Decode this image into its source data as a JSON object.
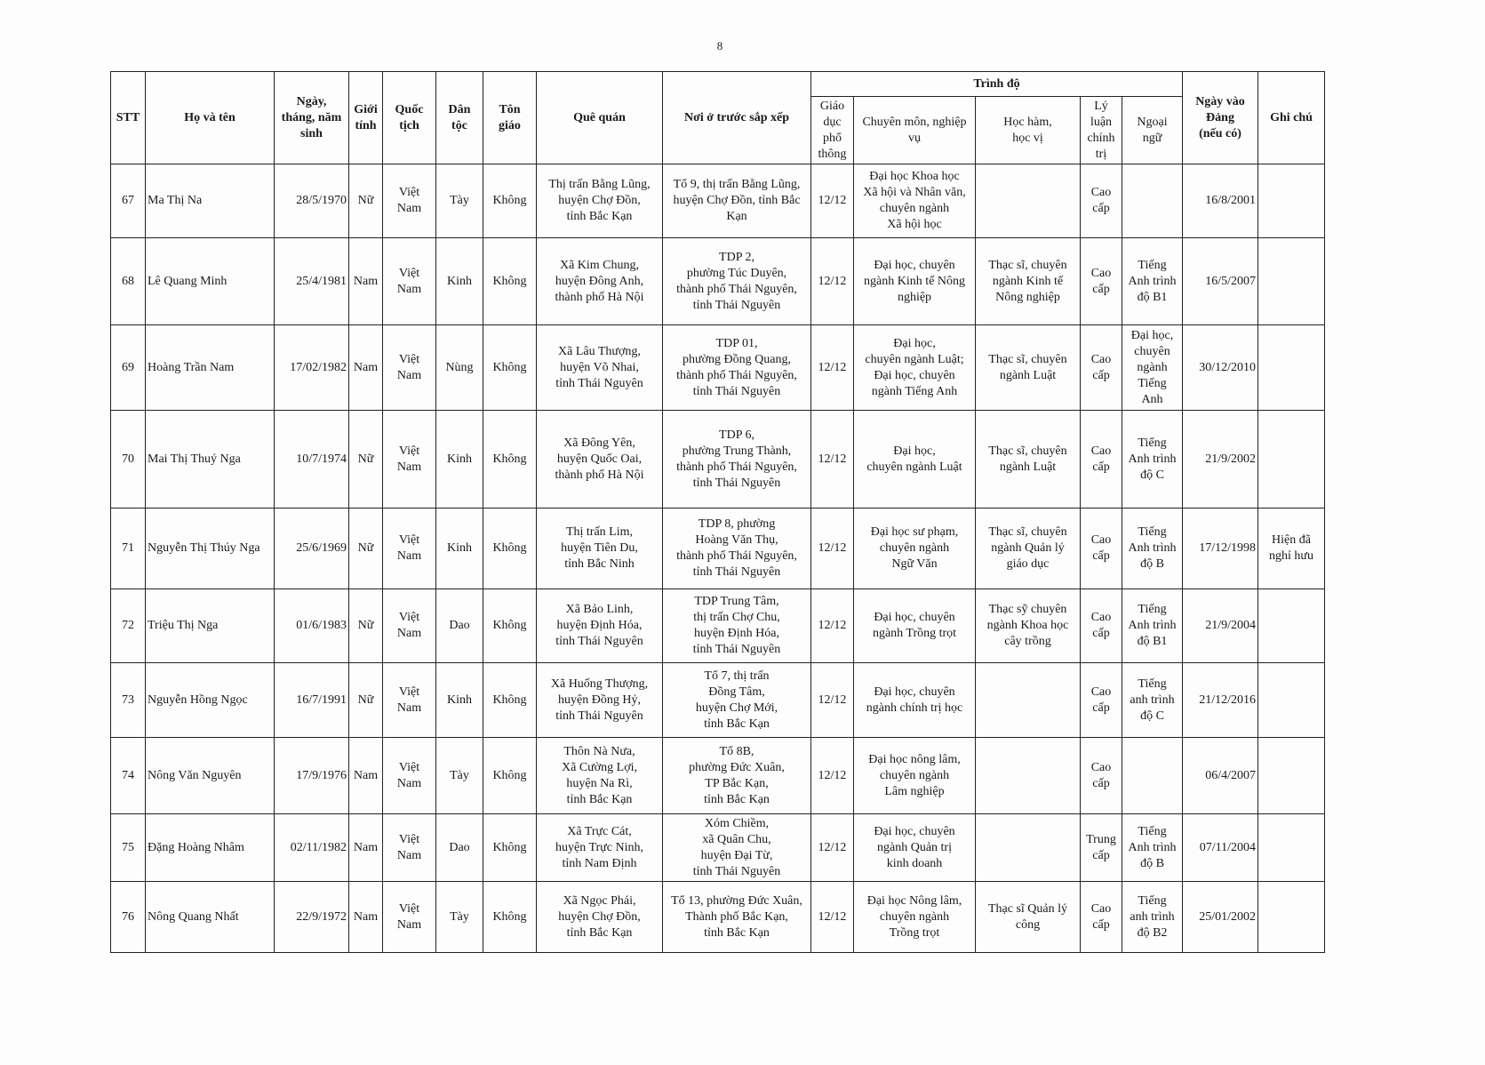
{
  "page_number": "8",
  "header": {
    "stt": "STT",
    "name": "Họ và tên",
    "dob": "Ngày,\ntháng, năm\nsinh",
    "gender": "Giới\ntính",
    "nationality": "Quốc\ntịch",
    "ethnicity": "Dân\ntộc",
    "religion": "Tôn\ngiáo",
    "hometown": "Quê quán",
    "residence": "Nơi ở trước sắp xếp",
    "qualification": "Trình độ",
    "general_edu": "Giáo\ndục\nphổ\nthông",
    "specialty": "Chuyên môn, nghiệp\nvụ",
    "degree": "Học hàm,\nhọc vị",
    "political": "Lý\nluận\nchính\ntrị",
    "language": "Ngoại\nngữ",
    "party_date": "Ngày vào\nĐảng\n(nếu có)",
    "note": "Ghi chú"
  },
  "rows": [
    {
      "stt": "67",
      "name": "Ma Thị Na",
      "dob": "28/5/1970",
      "gender": "Nữ",
      "nationality": "Việt\nNam",
      "ethnicity": "Tày",
      "religion": "Không",
      "hometown": "Thị trấn Bằng Lũng,\nhuyện Chợ Đồn,\ntỉnh Bắc Kạn",
      "residence": "Tổ 9, thị trấn Bằng Lũng,\nhuyện Chợ Đồn, tỉnh Bắc\nKạn",
      "general_edu": "12/12",
      "specialty": "Đại học Khoa học\nXã hội và Nhân văn,\nchuyên ngành\nXã hội học",
      "degree": "",
      "political": "Cao\ncấp",
      "language": "",
      "party_date": "16/8/2001",
      "note": ""
    },
    {
      "stt": "68",
      "name": "Lê Quang Minh",
      "dob": "25/4/1981",
      "gender": "Nam",
      "nationality": "Việt\nNam",
      "ethnicity": "Kinh",
      "religion": "Không",
      "hometown": "Xã Kim Chung,\nhuyện Đông Anh,\nthành phố Hà Nội",
      "residence": "TDP 2,\nphường Túc Duyên,\nthành phố Thái Nguyên,\ntỉnh Thái Nguyên",
      "general_edu": "12/12",
      "specialty": "Đại học, chuyên\nngành Kinh tế Nông\nnghiệp",
      "degree": "Thạc sĩ, chuyên\nngành Kinh tế\nNông nghiệp",
      "political": "Cao\ncấp",
      "language": "Tiếng\nAnh trình\nđộ B1",
      "party_date": "16/5/2007",
      "note": ""
    },
    {
      "stt": "69",
      "name": "Hoàng Trần Nam",
      "dob": "17/02/1982",
      "gender": "Nam",
      "nationality": "Việt\nNam",
      "ethnicity": "Nùng",
      "religion": "Không",
      "hometown": "Xã Lâu Thượng,\nhuyện Võ Nhai,\ntỉnh Thái Nguyên",
      "residence": "TDP 01,\nphường Đồng Quang,\nthành phố Thái Nguyên,\ntỉnh Thái Nguyên",
      "general_edu": "12/12",
      "specialty": "Đại học,\nchuyên ngành Luật;\nĐại học, chuyên\nngành Tiếng Anh",
      "degree": "Thạc sĩ, chuyên\nngành Luật",
      "political": "Cao\ncấp",
      "language": "Đại học,\nchuyên\nngành\nTiếng\nAnh",
      "party_date": "30/12/2010",
      "note": ""
    },
    {
      "stt": "70",
      "name": "Mai Thị Thuý Nga",
      "dob": "10/7/1974",
      "gender": "Nữ",
      "nationality": "Việt\nNam",
      "ethnicity": "Kinh",
      "religion": "Không",
      "hometown": "Xã Đông Yên,\nhuyện Quốc Oai,\nthành phố Hà Nội",
      "residence": "TDP 6,\nphường Trung Thành,\nthành phố Thái Nguyên,\ntỉnh Thái Nguyên",
      "general_edu": "12/12",
      "specialty": "Đại học,\nchuyên ngành Luật",
      "degree": "Thạc sĩ, chuyên\nngành Luật",
      "political": "Cao\ncấp",
      "language": "Tiếng\nAnh trình\nđộ C",
      "party_date": "21/9/2002",
      "note": ""
    },
    {
      "stt": "71",
      "name": "Nguyễn Thị Thúy Nga",
      "dob": "25/6/1969",
      "gender": "Nữ",
      "nationality": "Việt\nNam",
      "ethnicity": "Kinh",
      "religion": "Không",
      "hometown": "Thị trấn Lim,\nhuyện Tiên Du,\ntỉnh Bắc Ninh",
      "residence": "TDP 8, phường\nHoàng Văn Thụ,\nthành phố Thái Nguyên,\ntỉnh Thái Nguyên",
      "general_edu": "12/12",
      "specialty": "Đại học sư phạm,\nchuyên ngành\nNgữ Văn",
      "degree": "Thạc sĩ, chuyên\nngành Quản lý\ngiáo dục",
      "political": "Cao\ncấp",
      "language": "Tiếng\nAnh trình\nđộ B",
      "party_date": "17/12/1998",
      "note": "Hiện đã\nnghỉ hưu"
    },
    {
      "stt": "72",
      "name": "Triệu Thị Nga",
      "dob": "01/6/1983",
      "gender": "Nữ",
      "nationality": "Việt\nNam",
      "ethnicity": "Dao",
      "religion": "Không",
      "hometown": "Xã Bảo Linh,\nhuyện Định Hóa,\ntỉnh Thái Nguyên",
      "residence": "TDP Trung Tâm,\nthị trấn Chợ Chu,\nhuyện Định Hóa,\ntỉnh Thái Nguyên",
      "general_edu": "12/12",
      "specialty": "Đại học, chuyên\nngành Trồng trọt",
      "degree": "Thạc sỹ chuyên\nngành Khoa học\ncây trồng",
      "political": "Cao\ncấp",
      "language": "Tiếng\nAnh trình\nđộ B1",
      "party_date": "21/9/2004",
      "note": ""
    },
    {
      "stt": "73",
      "name": "Nguyễn Hồng Ngọc",
      "dob": "16/7/1991",
      "gender": "Nữ",
      "nationality": "Việt\nNam",
      "ethnicity": "Kinh",
      "religion": "Không",
      "hometown": "Xã Huống Thượng,\nhuyện Đồng Hỷ,\ntỉnh Thái Nguyên",
      "residence": "Tổ 7, thị trấn\nĐồng Tâm,\nhuyện Chợ Mới,\ntỉnh Bắc Kạn",
      "general_edu": "12/12",
      "specialty": "Đại học, chuyên\nngành chính trị học",
      "degree": "",
      "political": "Cao\ncấp",
      "language": "Tiếng\nanh trình\nđộ C",
      "party_date": "21/12/2016",
      "note": ""
    },
    {
      "stt": "74",
      "name": "Nông Văn Nguyên",
      "dob": "17/9/1976",
      "gender": "Nam",
      "nationality": "Việt\nNam",
      "ethnicity": "Tày",
      "religion": "Không",
      "hometown": "Thôn Nà Nưa,\nXã Cường Lợi,\nhuyện Na Rì,\ntỉnh Bắc Kạn",
      "residence": "Tổ 8B,\nphường Đức Xuân,\nTP Bắc Kạn,\ntỉnh Bắc Kạn",
      "general_edu": "12/12",
      "specialty": "Đại học nông lâm,\nchuyên ngành\nLâm nghiệp",
      "degree": "",
      "political": "Cao\ncấp",
      "language": "",
      "party_date": "06/4/2007",
      "note": ""
    },
    {
      "stt": "75",
      "name": "Đặng Hoàng Nhâm",
      "dob": "02/11/1982",
      "gender": "Nam",
      "nationality": "Việt\nNam",
      "ethnicity": "Dao",
      "religion": "Không",
      "hometown": "Xã Trực Cát,\nhuyện Trực Ninh,\ntỉnh Nam Định",
      "residence": "Xóm Chiềm,\nxã Quân Chu,\nhuyện Đại Từ,\ntỉnh Thái Nguyên",
      "general_edu": "12/12",
      "specialty": "Đại học, chuyên\nngành Quản trị\nkinh doanh",
      "degree": "",
      "political": "Trung\ncấp",
      "language": "Tiếng\nAnh trình\nđộ B",
      "party_date": "07/11/2004",
      "note": ""
    },
    {
      "stt": "76",
      "name": "Nông Quang Nhất",
      "dob": "22/9/1972",
      "gender": "Nam",
      "nationality": "Việt\nNam",
      "ethnicity": "Tày",
      "religion": "Không",
      "hometown": "Xã Ngọc Phái,\nhuyện Chợ Đồn,\ntỉnh Bắc Kạn",
      "residence": "Tổ 13, phường Đức Xuân,\nThành phố Bắc Kạn,\ntỉnh Bắc Kạn",
      "general_edu": "12/12",
      "specialty": "Đại học Nông lâm,\nchuyên ngành\nTrồng trọt",
      "degree": "Thạc sĩ Quản lý\ncông",
      "political": "Cao\ncấp",
      "language": "Tiếng\nanh trình\nđộ B2",
      "party_date": "25/01/2002",
      "note": ""
    }
  ]
}
